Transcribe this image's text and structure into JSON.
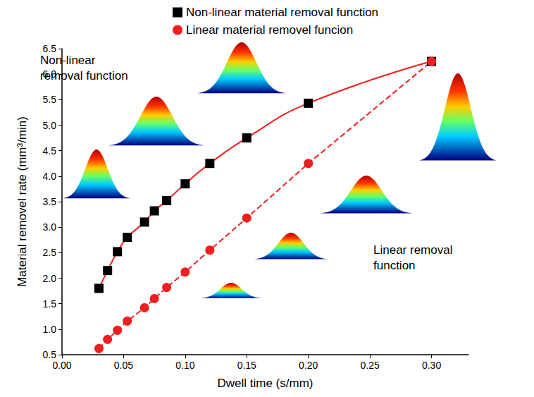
{
  "chart_data": {
    "type": "line",
    "x_label": "Dwell time (s/mm)",
    "y_label": "Material removel rate (mm³/min)",
    "annotations": [
      "Non-linear\nremoval function",
      "Linear removal\nfunction"
    ],
    "x": [
      0.03,
      0.037,
      0.045,
      0.053,
      0.067,
      0.075,
      0.085,
      0.1,
      0.12,
      0.15,
      0.2,
      0.3
    ],
    "xlim": [
      0,
      0.33
    ],
    "xticks": [
      {
        "value": 0,
        "label": "0.00"
      },
      {
        "value": 0.05,
        "label": "0.05"
      },
      {
        "value": 0.1,
        "label": "0.10"
      },
      {
        "value": 0.15,
        "label": "0.15"
      },
      {
        "value": 0.2,
        "label": "0.20"
      },
      {
        "value": 0.25,
        "label": "0.25"
      },
      {
        "value": 0.3,
        "label": "0.30"
      }
    ],
    "ylim": [
      0.5,
      6.5
    ],
    "yticks": [
      0.5,
      {
        "value": 1,
        "label": "1.0"
      },
      1.5,
      {
        "value": 2,
        "label": "2.0"
      },
      2.5,
      {
        "value": 3,
        "label": "3.0"
      },
      3.5,
      {
        "value": 4,
        "label": "4.0"
      },
      4.5,
      {
        "value": 5,
        "label": "5.0"
      },
      5.5,
      {
        "value": 6,
        "label": "6.0"
      },
      6.5
    ],
    "grid": false,
    "legend": "top",
    "series": [
      {
        "name": "Non-linear material removal function",
        "color": "#000000",
        "marker": "square",
        "line_style": "solid",
        "values": [
          1.8,
          2.15,
          2.52,
          2.8,
          3.1,
          3.32,
          3.52,
          3.85,
          4.25,
          4.75,
          5.43,
          6.25
        ]
      },
      {
        "name": "Linear material removel funcion",
        "color": "#f01e1e",
        "marker": "circle",
        "line_style": "dashed",
        "values": [
          0.62,
          0.8,
          0.98,
          1.16,
          1.42,
          1.6,
          1.82,
          2.12,
          2.55,
          3.18,
          4.25,
          6.25
        ]
      }
    ]
  }
}
